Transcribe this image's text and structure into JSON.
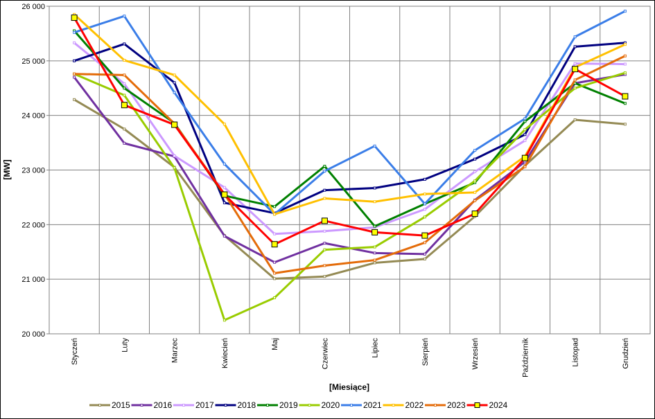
{
  "chart_data": {
    "type": "line",
    "title": "",
    "xlabel": "[Miesiące]",
    "ylabel": "[MW]",
    "ylim": [
      20000,
      26000
    ],
    "yticks": [
      20000,
      21000,
      22000,
      23000,
      24000,
      25000,
      26000
    ],
    "ytick_labels": [
      "20 000",
      "21 000",
      "22 000",
      "23 000",
      "24 000",
      "25 000",
      "26 000"
    ],
    "categories": [
      "Styczeń",
      "Luty",
      "Marzec",
      "Kwiecień",
      "Maj",
      "Czerwiec",
      "Lipiec",
      "Sierpień",
      "Wrzesień",
      "Październik",
      "Listopad",
      "Grudzień"
    ],
    "grid": true,
    "legend_position": "bottom",
    "series": [
      {
        "name": "2015",
        "color": "#948A54",
        "values": [
          24290,
          23750,
          23050,
          21800,
          21010,
          21050,
          21300,
          21370,
          22150,
          23080,
          23920,
          23840
        ]
      },
      {
        "name": "2016",
        "color": "#7030A0",
        "values": [
          24700,
          23490,
          23250,
          21790,
          21310,
          21660,
          21480,
          21460,
          22450,
          23150,
          24590,
          24750
        ]
      },
      {
        "name": "2017",
        "color": "#CC99FF",
        "values": [
          25330,
          24580,
          23260,
          22680,
          21830,
          21880,
          21950,
          22280,
          22970,
          23540,
          24950,
          24940
        ]
      },
      {
        "name": "2018",
        "color": "#000080",
        "values": [
          25000,
          25310,
          24600,
          22400,
          22210,
          22630,
          22670,
          22830,
          23200,
          23650,
          25260,
          25330
        ]
      },
      {
        "name": "2019",
        "color": "#008000",
        "values": [
          25550,
          24500,
          23860,
          22530,
          22330,
          23070,
          21970,
          22380,
          22770,
          23890,
          24590,
          24220
        ]
      },
      {
        "name": "2020",
        "color": "#99CC00",
        "values": [
          24760,
          24370,
          23040,
          20250,
          20660,
          21540,
          21590,
          22140,
          22800,
          23740,
          24500,
          24780
        ]
      },
      {
        "name": "2021",
        "color": "#3B7EE8",
        "values": [
          25520,
          25820,
          24420,
          23110,
          22190,
          22980,
          23440,
          22380,
          23360,
          23940,
          25440,
          25910
        ]
      },
      {
        "name": "2022",
        "color": "#FFC000",
        "values": [
          25850,
          25010,
          24740,
          23840,
          22190,
          22480,
          22420,
          22560,
          22590,
          23250,
          24880,
          25300
        ]
      },
      {
        "name": "2023",
        "color": "#E46C0A",
        "values": [
          24760,
          24740,
          23850,
          22560,
          21110,
          21250,
          21350,
          21670,
          22440,
          23060,
          24650,
          25090
        ]
      },
      {
        "name": "2024",
        "color": "#FF0000",
        "values": [
          25790,
          24190,
          23830,
          22550,
          21640,
          22070,
          21860,
          21800,
          22200,
          23220,
          24850,
          24350
        ]
      }
    ]
  }
}
